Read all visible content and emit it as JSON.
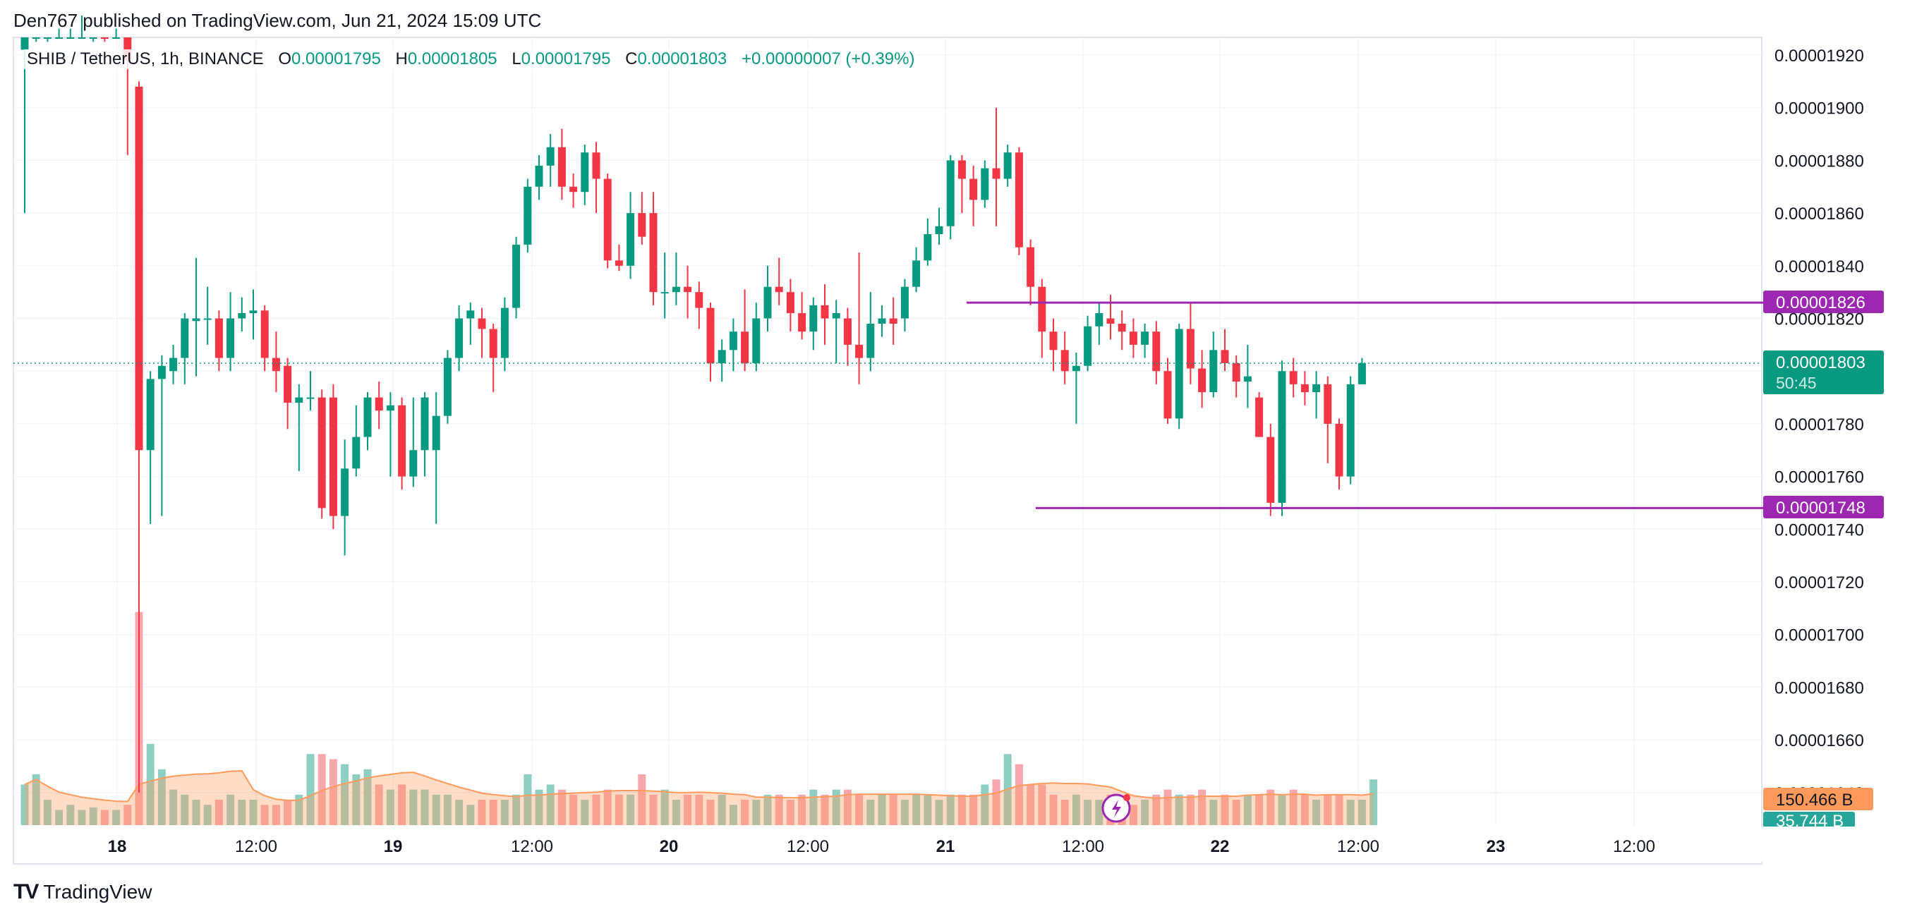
{
  "header": {
    "published": "Den767 published on TradingView.com, Jun 21, 2024 15:09 UTC"
  },
  "legend": {
    "symbol": "SHIB / TetherUS, 1h, BINANCE",
    "open_key": "O",
    "open": "0.00001795",
    "high_key": "H",
    "high": "0.00001805",
    "low_key": "L",
    "low": "0.00001795",
    "close_key": "C",
    "close": "0.00001803",
    "change": "+0.00000007 (+0.39%)"
  },
  "price_labels": {
    "resistance": "0.00001826",
    "current": "0.00001803",
    "countdown": "50:45",
    "support": "0.00001748",
    "volume_total": "150.466 B",
    "volume_last": "35.744 B"
  },
  "footer": {
    "brand": "TradingView"
  },
  "colors": {
    "up": "#089981",
    "down": "#f23645",
    "level": "#9c27b0",
    "vol_up": "#8fcfc2",
    "vol_down": "#f7a7ae",
    "vol_ma": "#ff9a5c",
    "grid": "#f0f3fa"
  },
  "chart_data": {
    "type": "candlestick",
    "ylim": [
      1.63e-05,
      1.93e-05
    ],
    "y_ticks": [
      "0.00001920",
      "0.00001900",
      "0.00001880",
      "0.00001860",
      "0.00001840",
      "0.00001820",
      "0.00001800",
      "0.00001780",
      "0.00001760",
      "0.00001740",
      "0.00001720",
      "0.00001700",
      "0.00001680",
      "0.00001660",
      "0.00001640"
    ],
    "x_tick_labels": [
      "18",
      "12:00",
      "19",
      "12:00",
      "20",
      "12:00",
      "21",
      "12:00",
      "22",
      "12:00",
      "23",
      "12:00"
    ],
    "horizontal_levels": [
      1.826e-05,
      1.748e-05
    ],
    "candles": [
      [
        1.922e-05,
        1.93e-05,
        1.86e-05,
        1.932e-05
      ],
      [
        1.93e-05,
        1.933e-05,
        1.925e-05,
        1.935e-05
      ],
      [
        1.93e-05,
        1.935e-05,
        1.925e-05,
        1.937e-05
      ],
      [
        1.935e-05,
        1.938e-05,
        1.93e-05,
        1.94e-05
      ],
      [
        1.935e-05,
        1.945e-05,
        1.93e-05,
        1.95e-05
      ],
      [
        1.94e-05,
        1.945e-05,
        1.935e-05,
        1.95e-05
      ],
      [
        1.93e-05,
        1.935e-05,
        1.925e-05,
        1.94e-05
      ],
      [
        1.935e-05,
        1.93e-05,
        1.925e-05,
        1.94e-05
      ],
      [
        1.935e-05,
        1.94e-05,
        1.93e-05,
        1.945e-05
      ],
      [
        1.935e-05,
        1.918e-05,
        1.882e-05,
        1.945e-05
      ],
      [
        1.908e-05,
        1.77e-05,
        1.64e-05,
        1.91e-05
      ],
      [
        1.77e-05,
        1.797e-05,
        1.742e-05,
        1.8e-05
      ],
      [
        1.797e-05,
        1.802e-05,
        1.745e-05,
        1.806e-05
      ],
      [
        1.8e-05,
        1.805e-05,
        1.795e-05,
        1.81e-05
      ],
      [
        1.805e-05,
        1.82e-05,
        1.795e-05,
        1.822e-05
      ],
      [
        1.819e-05,
        1.82e-05,
        1.798e-05,
        1.843e-05
      ],
      [
        1.82e-05,
        1.82e-05,
        1.81e-05,
        1.832e-05
      ],
      [
        1.82e-05,
        1.805e-05,
        1.8e-05,
        1.823e-05
      ],
      [
        1.805e-05,
        1.82e-05,
        1.8e-05,
        1.83e-05
      ],
      [
        1.82e-05,
        1.822e-05,
        1.815e-05,
        1.828e-05
      ],
      [
        1.822e-05,
        1.823e-05,
        1.812e-05,
        1.831e-05
      ],
      [
        1.823e-05,
        1.805e-05,
        1.8e-05,
        1.825e-05
      ],
      [
        1.805e-05,
        1.8e-05,
        1.792e-05,
        1.815e-05
      ],
      [
        1.802e-05,
        1.788e-05,
        1.778e-05,
        1.805e-05
      ],
      [
        1.788e-05,
        1.79e-05,
        1.762e-05,
        1.795e-05
      ],
      [
        1.79e-05,
        1.79e-05,
        1.785e-05,
        1.8e-05
      ],
      [
        1.79e-05,
        1.748e-05,
        1.744e-05,
        1.793e-05
      ],
      [
        1.79e-05,
        1.745e-05,
        1.74e-05,
        1.795e-05
      ],
      [
        1.745e-05,
        1.763e-05,
        1.73e-05,
        1.774e-05
      ],
      [
        1.763e-05,
        1.775e-05,
        1.76e-05,
        1.787e-05
      ],
      [
        1.775e-05,
        1.79e-05,
        1.77e-05,
        1.792e-05
      ],
      [
        1.79e-05,
        1.785e-05,
        1.778e-05,
        1.796e-05
      ],
      [
        1.785e-05,
        1.787e-05,
        1.76e-05,
        1.792e-05
      ],
      [
        1.787e-05,
        1.76e-05,
        1.755e-05,
        1.79e-05
      ],
      [
        1.76e-05,
        1.77e-05,
        1.756e-05,
        1.79e-05
      ],
      [
        1.77e-05,
        1.79e-05,
        1.76e-05,
        1.792e-05
      ],
      [
        1.77e-05,
        1.783e-05,
        1.742e-05,
        1.792e-05
      ],
      [
        1.783e-05,
        1.805e-05,
        1.78e-05,
        1.808e-05
      ],
      [
        1.805e-05,
        1.82e-05,
        1.8e-05,
        1.825e-05
      ],
      [
        1.82e-05,
        1.823e-05,
        1.81e-05,
        1.826e-05
      ],
      [
        1.82e-05,
        1.816e-05,
        1.805e-05,
        1.824e-05
      ],
      [
        1.816e-05,
        1.805e-05,
        1.792e-05,
        1.818e-05
      ],
      [
        1.805e-05,
        1.824e-05,
        1.8e-05,
        1.828e-05
      ],
      [
        1.824e-05,
        1.848e-05,
        1.82e-05,
        1.851e-05
      ],
      [
        1.848e-05,
        1.87e-05,
        1.845e-05,
        1.873e-05
      ],
      [
        1.87e-05,
        1.878e-05,
        1.865e-05,
        1.882e-05
      ],
      [
        1.878e-05,
        1.885e-05,
        1.87e-05,
        1.89e-05
      ],
      [
        1.885e-05,
        1.87e-05,
        1.865e-05,
        1.892e-05
      ],
      [
        1.87e-05,
        1.868e-05,
        1.862e-05,
        1.875e-05
      ],
      [
        1.868e-05,
        1.883e-05,
        1.863e-05,
        1.886e-05
      ],
      [
        1.883e-05,
        1.873e-05,
        1.86e-05,
        1.887e-05
      ],
      [
        1.873e-05,
        1.842e-05,
        1.839e-05,
        1.875e-05
      ],
      [
        1.842e-05,
        1.84e-05,
        1.838e-05,
        1.848e-05
      ],
      [
        1.84e-05,
        1.86e-05,
        1.835e-05,
        1.868e-05
      ],
      [
        1.86e-05,
        1.851e-05,
        1.848e-05,
        1.868e-05
      ],
      [
        1.86e-05,
        1.83e-05,
        1.825e-05,
        1.868e-05
      ],
      [
        1.83e-05,
        1.83e-05,
        1.82e-05,
        1.845e-05
      ],
      [
        1.83e-05,
        1.832e-05,
        1.825e-05,
        1.845e-05
      ],
      [
        1.832e-05,
        1.83e-05,
        1.82e-05,
        1.84e-05
      ],
      [
        1.83e-05,
        1.824e-05,
        1.816e-05,
        1.834e-05
      ],
      [
        1.824e-05,
        1.803e-05,
        1.796e-05,
        1.826e-05
      ],
      [
        1.803e-05,
        1.808e-05,
        1.796e-05,
        1.812e-05
      ],
      [
        1.808e-05,
        1.815e-05,
        1.8e-05,
        1.82e-05
      ],
      [
        1.815e-05,
        1.803e-05,
        1.8e-05,
        1.831e-05
      ],
      [
        1.803e-05,
        1.82e-05,
        1.8e-05,
        1.826e-05
      ],
      [
        1.82e-05,
        1.832e-05,
        1.815e-05,
        1.84e-05
      ],
      [
        1.832e-05,
        1.83e-05,
        1.825e-05,
        1.843e-05
      ],
      [
        1.83e-05,
        1.822e-05,
        1.815e-05,
        1.835e-05
      ],
      [
        1.822e-05,
        1.815e-05,
        1.812e-05,
        1.83e-05
      ],
      [
        1.815e-05,
        1.825e-05,
        1.808e-05,
        1.828e-05
      ],
      [
        1.825e-05,
        1.82e-05,
        1.81e-05,
        1.833e-05
      ],
      [
        1.82e-05,
        1.822e-05,
        1.803e-05,
        1.827e-05
      ],
      [
        1.82e-05,
        1.81e-05,
        1.802e-05,
        1.824e-05
      ],
      [
        1.81e-05,
        1.805e-05,
        1.795e-05,
        1.845e-05
      ],
      [
        1.805e-05,
        1.818e-05,
        1.8e-05,
        1.83e-05
      ],
      [
        1.818e-05,
        1.82e-05,
        1.813e-05,
        1.825e-05
      ],
      [
        1.82e-05,
        1.818e-05,
        1.81e-05,
        1.828e-05
      ],
      [
        1.82e-05,
        1.832e-05,
        1.815e-05,
        1.835e-05
      ],
      [
        1.832e-05,
        1.842e-05,
        1.83e-05,
        1.847e-05
      ],
      [
        1.842e-05,
        1.852e-05,
        1.84e-05,
        1.858e-05
      ],
      [
        1.852e-05,
        1.855e-05,
        1.848e-05,
        1.862e-05
      ],
      [
        1.855e-05,
        1.88e-05,
        1.85e-05,
        1.882e-05
      ],
      [
        1.88e-05,
        1.873e-05,
        1.86e-05,
        1.882e-05
      ],
      [
        1.873e-05,
        1.865e-05,
        1.855e-05,
        1.878e-05
      ],
      [
        1.865e-05,
        1.877e-05,
        1.862e-05,
        1.88e-05
      ],
      [
        1.877e-05,
        1.873e-05,
        1.855e-05,
        1.9e-05
      ],
      [
        1.873e-05,
        1.883e-05,
        1.87e-05,
        1.886e-05
      ],
      [
        1.883e-05,
        1.847e-05,
        1.844e-05,
        1.885e-05
      ],
      [
        1.847e-05,
        1.832e-05,
        1.825e-05,
        1.85e-05
      ],
      [
        1.832e-05,
        1.815e-05,
        1.805e-05,
        1.835e-05
      ],
      [
        1.815e-05,
        1.808e-05,
        1.8e-05,
        1.82e-05
      ],
      [
        1.808e-05,
        1.8e-05,
        1.795e-05,
        1.815e-05
      ],
      [
        1.8e-05,
        1.802e-05,
        1.78e-05,
        1.807e-05
      ],
      [
        1.802e-05,
        1.817e-05,
        1.8e-05,
        1.821e-05
      ],
      [
        1.817e-05,
        1.822e-05,
        1.81e-05,
        1.826e-05
      ],
      [
        1.82e-05,
        1.818e-05,
        1.812e-05,
        1.829e-05
      ],
      [
        1.818e-05,
        1.815e-05,
        1.808e-05,
        1.823e-05
      ],
      [
        1.815e-05,
        1.81e-05,
        1.805e-05,
        1.82e-05
      ],
      [
        1.81e-05,
        1.815e-05,
        1.805e-05,
        1.818e-05
      ],
      [
        1.815e-05,
        1.8e-05,
        1.795e-05,
        1.819e-05
      ],
      [
        1.8e-05,
        1.782e-05,
        1.78e-05,
        1.805e-05
      ],
      [
        1.782e-05,
        1.816e-05,
        1.778e-05,
        1.818e-05
      ],
      [
        1.816e-05,
        1.801e-05,
        1.795e-05,
        1.826e-05
      ],
      [
        1.801e-05,
        1.792e-05,
        1.786e-05,
        1.808e-05
      ],
      [
        1.792e-05,
        1.808e-05,
        1.79e-05,
        1.815e-05
      ],
      [
        1.808e-05,
        1.803e-05,
        1.8e-05,
        1.816e-05
      ],
      [
        1.803e-05,
        1.796e-05,
        1.79e-05,
        1.806e-05
      ],
      [
        1.796e-05,
        1.798e-05,
        1.786e-05,
        1.81e-05
      ],
      [
        1.79e-05,
        1.775e-05,
        1.775e-05,
        1.792e-05
      ],
      [
        1.775e-05,
        1.75e-05,
        1.745e-05,
        1.78e-05
      ],
      [
        1.75e-05,
        1.8e-05,
        1.745e-05,
        1.804e-05
      ],
      [
        1.8e-05,
        1.795e-05,
        1.79e-05,
        1.805e-05
      ],
      [
        1.795e-05,
        1.792e-05,
        1.787e-05,
        1.8e-05
      ],
      [
        1.792e-05,
        1.795e-05,
        1.782e-05,
        1.8e-05
      ],
      [
        1.795e-05,
        1.78e-05,
        1.765e-05,
        1.798e-05
      ],
      [
        1.78e-05,
        1.76e-05,
        1.755e-05,
        1.782e-05
      ],
      [
        1.76e-05,
        1.795e-05,
        1.757e-05,
        1.798e-05
      ],
      [
        1.795e-05,
        1.803e-05,
        1.795e-05,
        1.805e-05
      ]
    ],
    "volumes": [
      0.8,
      1.0,
      0.5,
      0.3,
      0.4,
      0.3,
      0.35,
      0.3,
      0.3,
      0.4,
      4.2,
      1.6,
      1.1,
      0.7,
      0.6,
      0.5,
      0.4,
      0.5,
      0.6,
      0.5,
      0.5,
      0.4,
      0.4,
      0.5,
      0.6,
      1.4,
      1.4,
      1.3,
      1.2,
      1.0,
      1.1,
      0.8,
      0.7,
      0.8,
      0.7,
      0.7,
      0.6,
      0.6,
      0.5,
      0.4,
      0.5,
      0.5,
      0.5,
      0.6,
      1.0,
      0.7,
      0.8,
      0.7,
      0.6,
      0.5,
      0.6,
      0.7,
      0.6,
      0.6,
      1.0,
      0.6,
      0.7,
      0.5,
      0.6,
      0.6,
      0.5,
      0.6,
      0.4,
      0.5,
      0.5,
      0.6,
      0.6,
      0.5,
      0.6,
      0.7,
      0.6,
      0.7,
      0.7,
      0.6,
      0.5,
      0.6,
      0.6,
      0.5,
      0.6,
      0.6,
      0.5,
      0.6,
      0.6,
      0.6,
      0.8,
      0.9,
      1.4,
      1.2,
      0.8,
      0.8,
      0.6,
      0.5,
      0.6,
      0.5,
      0.5,
      0.6,
      0.5,
      0.4,
      0.5,
      0.6,
      0.7,
      0.6,
      0.6,
      0.7,
      0.5,
      0.6,
      0.5,
      0.6,
      0.6,
      0.7,
      0.6,
      0.7,
      0.6,
      0.5,
      0.6,
      0.6,
      0.5,
      0.5,
      0.9
    ]
  }
}
